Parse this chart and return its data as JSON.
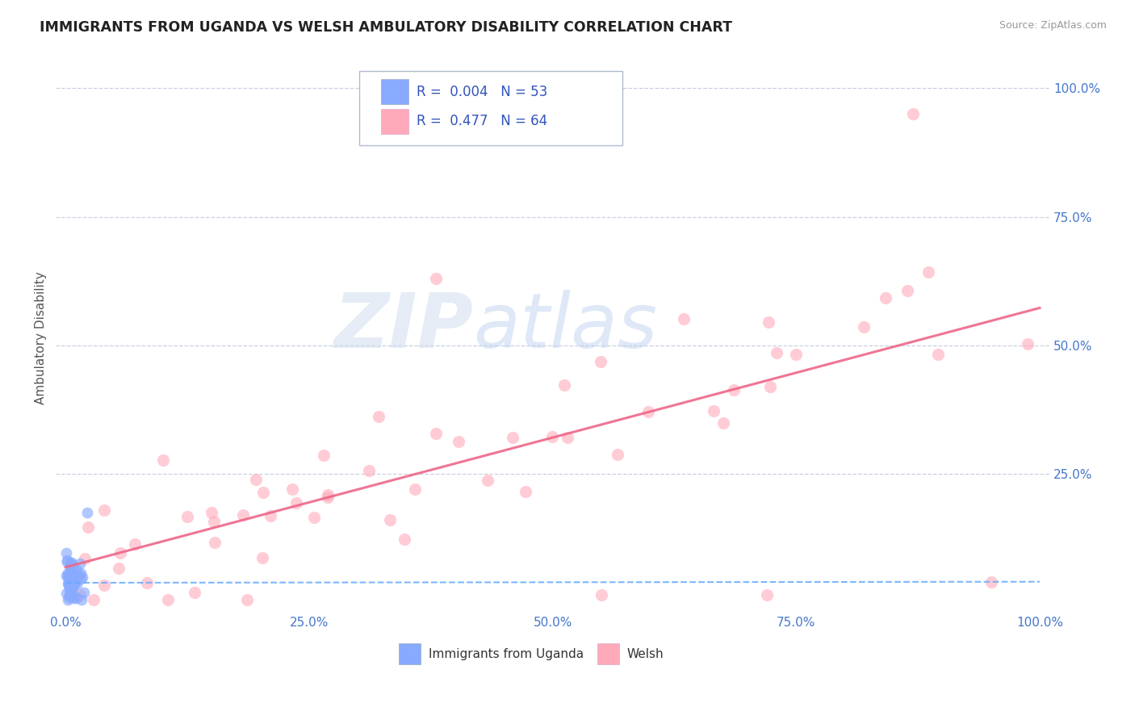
{
  "title": "IMMIGRANTS FROM UGANDA VS WELSH AMBULATORY DISABILITY CORRELATION CHART",
  "source": "Source: ZipAtlas.com",
  "ylabel": "Ambulatory Disability",
  "legend_label1": "Immigrants from Uganda",
  "legend_label2": "Welsh",
  "r1": 0.004,
  "n1": 53,
  "r2": 0.477,
  "n2": 64,
  "color_blue": "#88aaff",
  "color_pink": "#ffaabb",
  "color_trend_blue": "#66aaff",
  "color_trend_pink": "#ee6688",
  "title_color": "#222222",
  "axis_label_color": "#555555",
  "tick_color": "#4477cc",
  "grid_color": "#c8d0e0",
  "background_color": "#ffffff",
  "watermark_zip": "ZIP",
  "watermark_atlas": "atlas",
  "legend_text_color": "#3355bb"
}
